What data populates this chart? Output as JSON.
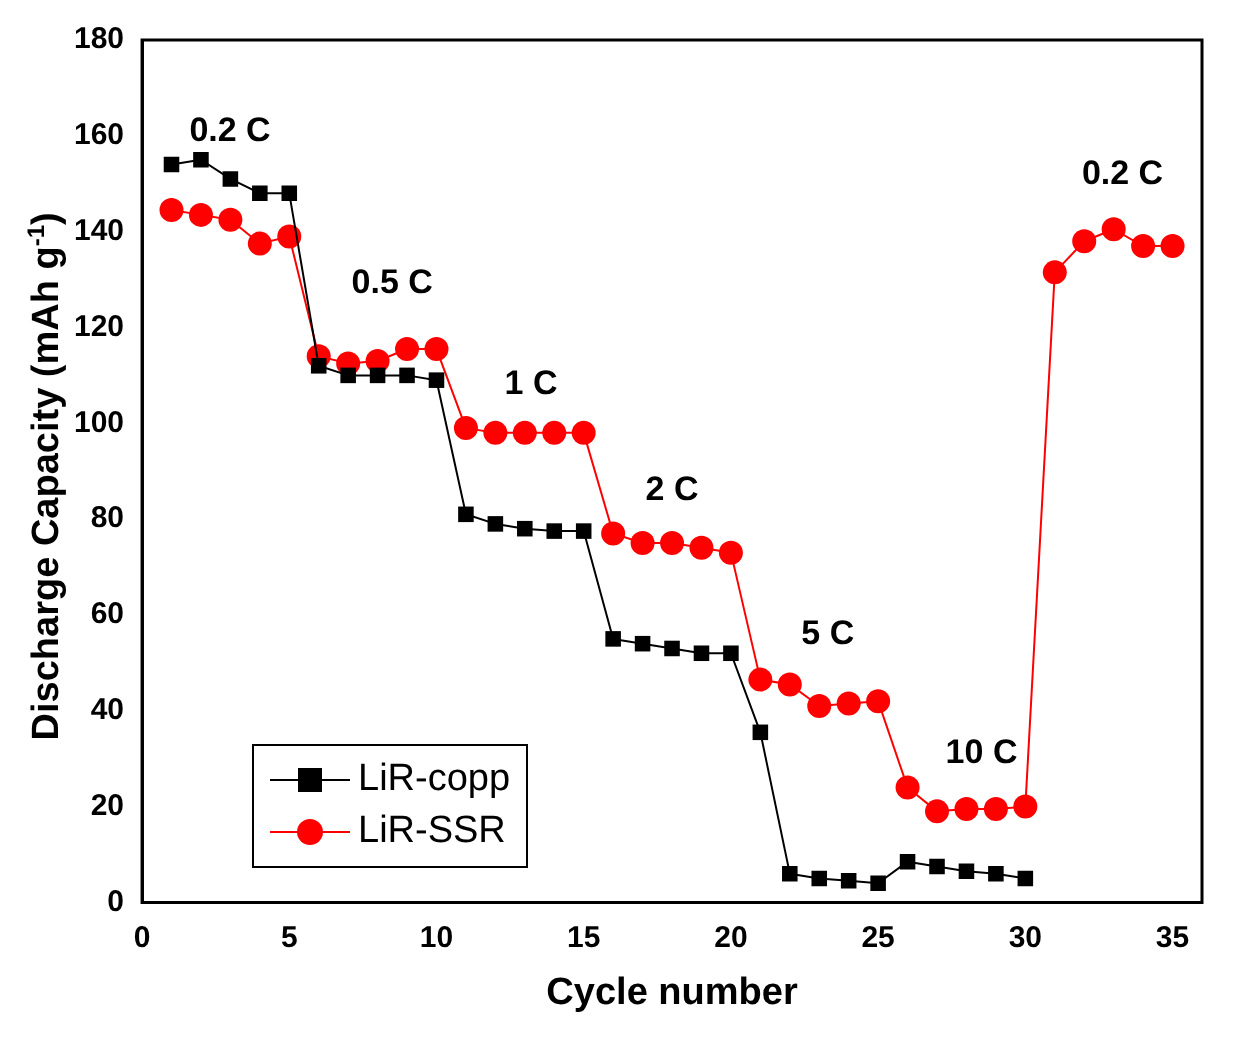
{
  "chart_data": {
    "type": "line",
    "xlabel": "Cycle number",
    "ylabel": "Discharge Capacity (mAh g$^{-1}$)",
    "xlim": [
      0,
      36
    ],
    "xticks": [
      0,
      5,
      10,
      15,
      20,
      25,
      30,
      35
    ],
    "ylim": [
      0,
      180
    ],
    "yticks": [
      0,
      20,
      40,
      60,
      80,
      100,
      120,
      140,
      160,
      180
    ],
    "grid": false,
    "legend": "bottom left",
    "series": [
      {
        "name": "LiR-copp",
        "color": "#000000",
        "marker": "square",
        "x": [
          1,
          2,
          3,
          4,
          5,
          6,
          7,
          8,
          9,
          10,
          11,
          12,
          13,
          14,
          15,
          16,
          17,
          18,
          19,
          20,
          21,
          22,
          23,
          24,
          25,
          26,
          27,
          28,
          29,
          30
        ],
        "values": [
          154,
          155,
          151,
          148,
          148,
          112,
          110,
          110,
          110,
          109,
          81,
          79,
          78,
          77.5,
          77.5,
          55,
          54,
          53,
          52,
          52,
          35.5,
          6,
          5,
          4.5,
          4,
          8.5,
          7.5,
          6.5,
          6,
          5
        ]
      },
      {
        "name": "LiR-SSR",
        "color": "#ff0000",
        "marker": "circle",
        "x": [
          1,
          2,
          3,
          4,
          5,
          6,
          7,
          8,
          9,
          10,
          11,
          12,
          13,
          14,
          15,
          16,
          17,
          18,
          19,
          20,
          21,
          22,
          23,
          24,
          25,
          26,
          27,
          28,
          29,
          30,
          31,
          32,
          33,
          34,
          35
        ],
        "values": [
          144.5,
          143.5,
          142.5,
          137.5,
          139,
          114,
          112.5,
          113,
          115.5,
          115.5,
          99,
          98,
          98,
          98,
          98,
          77,
          75,
          75,
          74,
          73,
          46.5,
          45.5,
          41,
          41.5,
          42,
          24,
          19,
          19.5,
          19.5,
          20,
          131.5,
          138,
          140.5,
          137,
          137
        ]
      }
    ],
    "annotations": [
      "0.2 C",
      "0.5 C",
      "1 C",
      "2 C",
      "5 C",
      "10 C",
      "0.2 C"
    ]
  }
}
